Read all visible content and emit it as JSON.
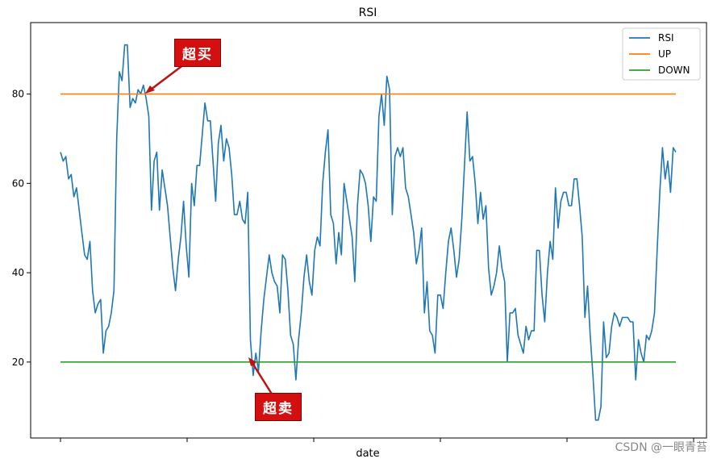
{
  "chart_data": {
    "type": "line",
    "title": "RSI",
    "xlabel": "date",
    "ylabel": "",
    "ylim": [
      3,
      96
    ],
    "yticks": [
      20,
      40,
      60,
      80
    ],
    "x_tick_count": 6,
    "grid": false,
    "legend_position": "top-right",
    "series": [
      {
        "name": "RSI",
        "color": "#1f77b4",
        "values": [
          67,
          65,
          66,
          61,
          62,
          57,
          59,
          54,
          49,
          44,
          43,
          47,
          36,
          31,
          33,
          34,
          22,
          27,
          28,
          31,
          36,
          70,
          85,
          83,
          91,
          91,
          77,
          79,
          78,
          81,
          80,
          82,
          79,
          75,
          54,
          65,
          67,
          54,
          63,
          59,
          55,
          48,
          41,
          36,
          43,
          48,
          56,
          46,
          39,
          60,
          55,
          64,
          64,
          71,
          78,
          74,
          74,
          65,
          56,
          69,
          73,
          65,
          70,
          68,
          62,
          53,
          53,
          56,
          52,
          51,
          58,
          25,
          17,
          22,
          18,
          27,
          34,
          39,
          44,
          40,
          38,
          37,
          31,
          44,
          43,
          36,
          26,
          24,
          16,
          25,
          31,
          39,
          44,
          38,
          35,
          45,
          48,
          46,
          60,
          67,
          72,
          53,
          51,
          42,
          49,
          44,
          60,
          56,
          52,
          48,
          38,
          55,
          63,
          62,
          60,
          55,
          47,
          57,
          56,
          75,
          80,
          73,
          84,
          81,
          53,
          66,
          68,
          66,
          68,
          59,
          57,
          53,
          49,
          42,
          45,
          50,
          31,
          38,
          27,
          26,
          22,
          35,
          35,
          32,
          40,
          47,
          50,
          45,
          39,
          43,
          52,
          64,
          76,
          65,
          66,
          60,
          51,
          58,
          52,
          55,
          41,
          35,
          37,
          40,
          46,
          41,
          38,
          20,
          31,
          31,
          32,
          26,
          24,
          22,
          28,
          25,
          27,
          27,
          45,
          45,
          35,
          29,
          40,
          47,
          43,
          59,
          50,
          56,
          58,
          58,
          55,
          55,
          61,
          61,
          55,
          48,
          30,
          37,
          26,
          17,
          7,
          7,
          10,
          29,
          21,
          22,
          28,
          31,
          30,
          28,
          30,
          30,
          30,
          29,
          29,
          16,
          25,
          22,
          20,
          26,
          25,
          27,
          31,
          45,
          58,
          68,
          61,
          65,
          58,
          68,
          67
        ]
      },
      {
        "name": "UP",
        "color": "#ff7f0e",
        "values": [
          80
        ]
      },
      {
        "name": "DOWN",
        "color": "#2ca02c",
        "values": [
          20
        ]
      }
    ]
  },
  "annotations": {
    "overbought": "超买",
    "oversold": "超卖"
  },
  "watermark": "CSDN @一眼青苔"
}
